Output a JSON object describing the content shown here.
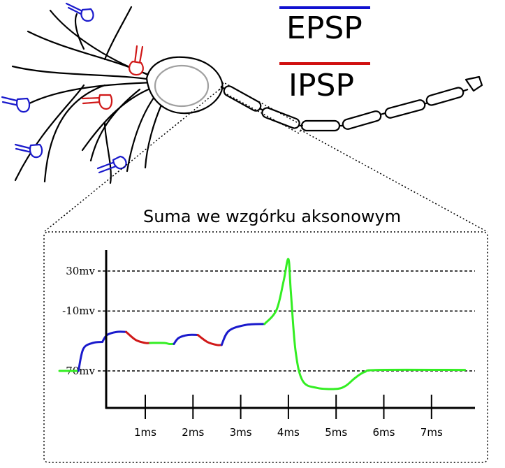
{
  "legend": {
    "epsp": {
      "label": "EPSP",
      "color": "#1010d0"
    },
    "ipsp": {
      "label": "IPSP",
      "color": "#d01010"
    }
  },
  "diagram_title": "Suma we wzgórku aksonowym",
  "colors": {
    "epsp": "#1a1acc",
    "ipsp": "#d01818",
    "action_potential": "#33ee22",
    "outline": "#000000",
    "soma_nucleus": "#a0a0a0"
  },
  "chart_data": {
    "type": "line",
    "title": "Suma we wzgórku aksonowym",
    "xlabel": "",
    "ylabel": "",
    "x_tick_labels": [
      "1ms",
      "2ms",
      "3ms",
      "4ms",
      "5ms",
      "6ms",
      "7ms"
    ],
    "x_ticks": [
      1,
      2,
      3,
      4,
      5,
      6,
      7
    ],
    "y_reference_lines": [
      {
        "label": "30mv",
        "value": 30
      },
      {
        "label": "-10mv",
        "value": -10
      },
      {
        "label": "-70mv",
        "value": -70
      }
    ],
    "xlim": [
      -0.8,
      7.7
    ],
    "ylim": [
      -108,
      42
    ],
    "segments": [
      {
        "kind": "rest",
        "color": "green",
        "points": [
          [
            -0.8,
            -70
          ],
          [
            -0.4,
            -70
          ]
        ]
      },
      {
        "kind": "EPSP",
        "color": "blue",
        "points": [
          [
            -0.4,
            -70
          ],
          [
            -0.3,
            -48
          ],
          [
            -0.1,
            -42
          ],
          [
            0.1,
            -41
          ]
        ]
      },
      {
        "kind": "EPSP",
        "color": "blue",
        "points": [
          [
            0.1,
            -41
          ],
          [
            0.2,
            -34
          ],
          [
            0.4,
            -31
          ],
          [
            0.6,
            -31
          ]
        ]
      },
      {
        "kind": "IPSP",
        "color": "red",
        "points": [
          [
            0.6,
            -31
          ],
          [
            0.8,
            -39
          ],
          [
            1.0,
            -42
          ],
          [
            1.1,
            -42
          ]
        ]
      },
      {
        "kind": "decay",
        "color": "green",
        "points": [
          [
            1.1,
            -42
          ],
          [
            1.4,
            -42
          ],
          [
            1.5,
            -43
          ],
          [
            1.6,
            -43
          ]
        ]
      },
      {
        "kind": "EPSP",
        "color": "blue",
        "points": [
          [
            1.6,
            -43
          ],
          [
            1.7,
            -37
          ],
          [
            1.9,
            -34
          ],
          [
            2.1,
            -34
          ]
        ]
      },
      {
        "kind": "IPSP",
        "color": "red",
        "points": [
          [
            2.1,
            -34
          ],
          [
            2.3,
            -41
          ],
          [
            2.5,
            -44
          ],
          [
            2.6,
            -44
          ]
        ]
      },
      {
        "kind": "EPSP",
        "color": "blue",
        "points": [
          [
            2.6,
            -44
          ],
          [
            2.75,
            -30
          ],
          [
            3.1,
            -24
          ],
          [
            3.5,
            -23
          ]
        ]
      },
      {
        "kind": "action_potential",
        "color": "green",
        "points": [
          [
            3.5,
            -23
          ],
          [
            3.75,
            -9
          ],
          [
            3.9,
            20
          ],
          [
            4.0,
            42
          ],
          [
            4.05,
            10
          ],
          [
            4.15,
            -50
          ],
          [
            4.3,
            -80
          ],
          [
            4.6,
            -87
          ],
          [
            5.0,
            -88
          ],
          [
            5.2,
            -85
          ],
          [
            5.4,
            -77
          ],
          [
            5.6,
            -71
          ],
          [
            5.9,
            -69
          ],
          [
            7.7,
            -69
          ]
        ]
      }
    ]
  }
}
